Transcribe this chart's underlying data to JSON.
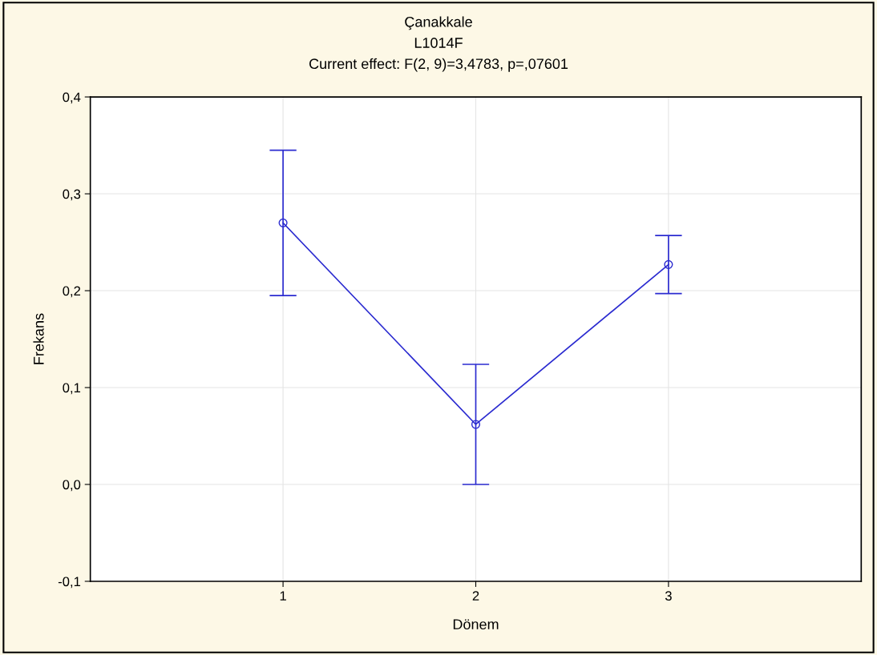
{
  "chart_data": {
    "type": "line",
    "title": "Çanakkale",
    "subtitle": "L1014F",
    "annotations": [
      "Current effect: F(2, 9)=3,4783, p=,07601"
    ],
    "xlabel": "Dönem",
    "ylabel": "Frekans",
    "x": [
      1,
      2,
      3
    ],
    "series": [
      {
        "color": "#2b2bd0",
        "values": [
          0.27,
          0.062,
          0.227
        ],
        "errors": [
          0.075,
          0.062,
          0.03
        ]
      }
    ],
    "xlim": [
      0,
      4
    ],
    "xticks": [
      1,
      2,
      3
    ],
    "ylim": [
      -0.1,
      0.4
    ],
    "yticks": [
      {
        "value": -0.1,
        "label": "-0,1"
      },
      {
        "value": 0,
        "label": "0,0"
      },
      {
        "value": 0.1,
        "label": "0,1"
      },
      {
        "value": 0.2,
        "label": "0,2"
      },
      {
        "value": 0.3,
        "label": "0,3"
      },
      {
        "value": 0.4,
        "label": "0,4"
      }
    ],
    "grid": true,
    "marker": "circle",
    "line_style": "solid"
  }
}
